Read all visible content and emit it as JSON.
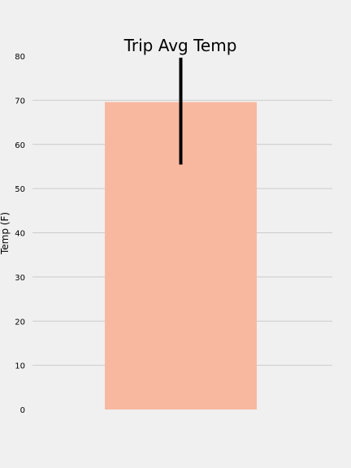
{
  "chart_data": {
    "type": "bar",
    "title": "Trip Avg Temp",
    "ylabel": "Temp (F)",
    "xlabel": "",
    "categories": [
      ""
    ],
    "values": [
      69.6
    ],
    "error": {
      "min": 56,
      "max": 80
    },
    "ylim": [
      0,
      80
    ],
    "yticks": [
      "0",
      "10",
      "20",
      "30",
      "40",
      "50",
      "60",
      "70",
      "80"
    ],
    "grid": "horizontal",
    "colors": {
      "background": "#f0f0f0",
      "bar": "#f8b8a0",
      "grid": "#cbcbcb",
      "errorbar": "#000000",
      "text": "#000000"
    }
  }
}
